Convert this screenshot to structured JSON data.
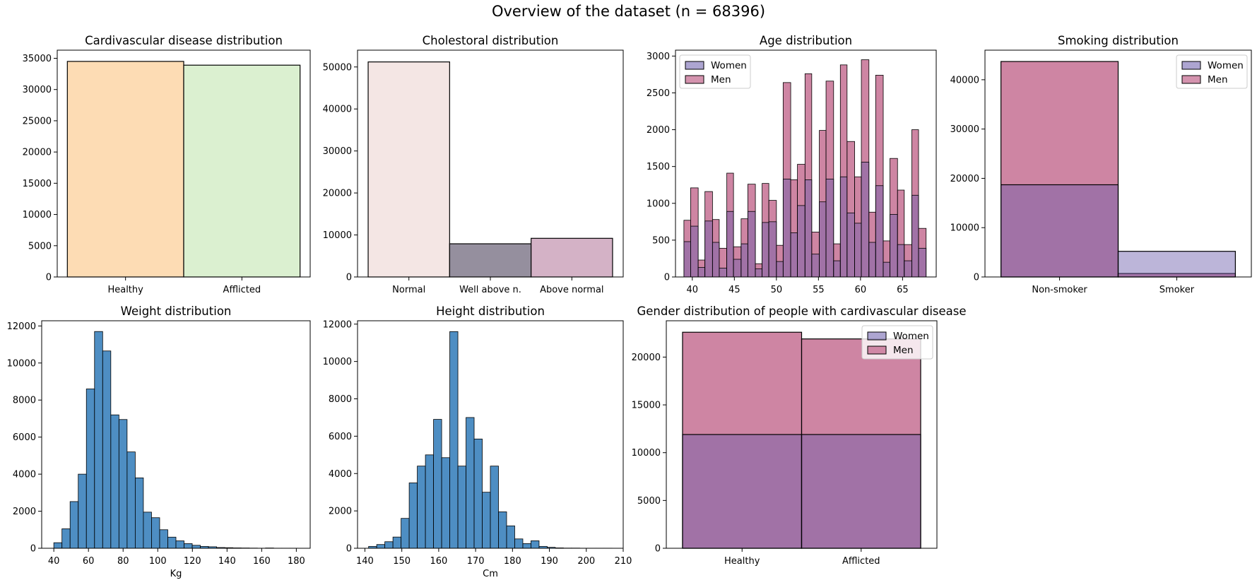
{
  "figure": {
    "title": "Overview of the dataset (n = 68396)"
  },
  "colors": {
    "healthy": "#fddcb4",
    "afflicted": "#dbf0d0",
    "chol_normal": "#f4e6e4",
    "chol_well": "#958f9e",
    "chol_above": "#d4b2c6",
    "women": "#6a5bab",
    "men": "#b03a6b",
    "histogram": "#2f7ab8"
  },
  "chart_data": [
    {
      "id": "cardio",
      "type": "bar",
      "title": "Cardivascular disease distribution",
      "categories": [
        "Healthy",
        "Afflicted"
      ],
      "values": [
        34500,
        33900
      ],
      "ylim": [
        0,
        36300
      ],
      "yticks": [
        0,
        5000,
        10000,
        15000,
        20000,
        25000,
        30000,
        35000
      ],
      "xlabel": "",
      "ylabel": ""
    },
    {
      "id": "chol",
      "type": "bar",
      "title": "Cholestoral distribution",
      "categories": [
        "Normal",
        "Well above n.",
        "Above normal"
      ],
      "values": [
        51200,
        7900,
        9200
      ],
      "ylim": [
        0,
        54000
      ],
      "yticks": [
        0,
        10000,
        20000,
        30000,
        40000,
        50000
      ],
      "xlabel": "",
      "ylabel": ""
    },
    {
      "id": "age",
      "type": "bar",
      "title": "Age distribution",
      "legend": [
        "Women",
        "Men"
      ],
      "legend_loc": "upper left",
      "bins": [
        {
          "x0": 39.0,
          "x1": 39.8,
          "women": 480,
          "total": 770
        },
        {
          "x0": 39.8,
          "x1": 40.7,
          "women": 690,
          "total": 1210
        },
        {
          "x0": 40.7,
          "x1": 41.5,
          "women": 130,
          "total": 230
        },
        {
          "x0": 41.5,
          "x1": 42.4,
          "women": 760,
          "total": 1160
        },
        {
          "x0": 42.4,
          "x1": 43.2,
          "women": 470,
          "total": 780
        },
        {
          "x0": 43.2,
          "x1": 44.1,
          "women": 120,
          "total": 390
        },
        {
          "x0": 44.1,
          "x1": 44.9,
          "women": 890,
          "total": 1410
        },
        {
          "x0": 44.9,
          "x1": 45.8,
          "women": 240,
          "total": 410
        },
        {
          "x0": 45.8,
          "x1": 46.6,
          "women": 450,
          "total": 790
        },
        {
          "x0": 46.6,
          "x1": 47.5,
          "women": 890,
          "total": 1260
        },
        {
          "x0": 47.5,
          "x1": 48.3,
          "women": 110,
          "total": 180
        },
        {
          "x0": 48.3,
          "x1": 49.1,
          "women": 740,
          "total": 1270
        },
        {
          "x0": 49.1,
          "x1": 50.0,
          "women": 750,
          "total": 1040
        },
        {
          "x0": 50.0,
          "x1": 50.8,
          "women": 210,
          "total": 430
        },
        {
          "x0": 50.8,
          "x1": 51.7,
          "women": 1330,
          "total": 2640
        },
        {
          "x0": 51.7,
          "x1": 52.5,
          "women": 600,
          "total": 1320
        },
        {
          "x0": 52.5,
          "x1": 53.4,
          "women": 970,
          "total": 1530
        },
        {
          "x0": 53.4,
          "x1": 54.2,
          "women": 1320,
          "total": 2760
        },
        {
          "x0": 54.2,
          "x1": 55.1,
          "women": 310,
          "total": 610
        },
        {
          "x0": 55.1,
          "x1": 55.9,
          "women": 1020,
          "total": 1990
        },
        {
          "x0": 55.9,
          "x1": 56.8,
          "women": 1330,
          "total": 2660
        },
        {
          "x0": 56.8,
          "x1": 57.6,
          "women": 220,
          "total": 450
        },
        {
          "x0": 57.6,
          "x1": 58.4,
          "women": 1360,
          "total": 2880
        },
        {
          "x0": 58.4,
          "x1": 59.3,
          "women": 870,
          "total": 1840
        },
        {
          "x0": 59.3,
          "x1": 60.1,
          "women": 730,
          "total": 1360
        },
        {
          "x0": 60.1,
          "x1": 61.0,
          "women": 1560,
          "total": 2950
        },
        {
          "x0": 61.0,
          "x1": 61.8,
          "women": 470,
          "total": 880
        },
        {
          "x0": 61.8,
          "x1": 62.7,
          "women": 1240,
          "total": 2740
        },
        {
          "x0": 62.7,
          "x1": 63.5,
          "women": 200,
          "total": 490
        },
        {
          "x0": 63.5,
          "x1": 64.4,
          "women": 850,
          "total": 1610
        },
        {
          "x0": 64.4,
          "x1": 65.2,
          "women": 440,
          "total": 1180
        },
        {
          "x0": 65.2,
          "x1": 66.1,
          "women": 220,
          "total": 440
        },
        {
          "x0": 66.1,
          "x1": 66.9,
          "women": 1110,
          "total": 2000
        },
        {
          "x0": 66.9,
          "x1": 67.8,
          "women": 390,
          "total": 660
        }
      ],
      "xlim": [
        38.0,
        69.0
      ],
      "xticks": [
        40,
        45,
        50,
        55,
        60,
        65
      ],
      "ylim": [
        0,
        3080
      ],
      "yticks": [
        0,
        500,
        1000,
        1500,
        2000,
        2500,
        3000
      ],
      "xlabel": "",
      "ylabel": ""
    },
    {
      "id": "smoke",
      "type": "bar",
      "title": "Smoking distribution",
      "categories": [
        "Non-smoker",
        "Smoker"
      ],
      "series": [
        {
          "name": "Women",
          "values": [
            18700,
            5200
          ]
        },
        {
          "name": "Men",
          "values": [
            43700,
            700
          ]
        }
      ],
      "legend_loc": "upper right",
      "ylim": [
        0,
        46000
      ],
      "yticks": [
        0,
        10000,
        20000,
        30000,
        40000
      ],
      "xlabel": "",
      "ylabel": ""
    },
    {
      "id": "weight",
      "type": "bar",
      "title": "Weight distribution",
      "xlabel": "Kg",
      "bin_edges": [
        40,
        44.7,
        49.4,
        54.1,
        58.8,
        63.5,
        68.2,
        72.9,
        77.6,
        82.3,
        87,
        91.7,
        96.4,
        101.1,
        105.8,
        110.5,
        115.2,
        119.9,
        124.6,
        129.3,
        134,
        138.7,
        143.4,
        148.1,
        152.8,
        157.5,
        162.2,
        166.9,
        171.6,
        176.3,
        181
      ],
      "counts": [
        300,
        1050,
        2520,
        4000,
        8600,
        11700,
        10650,
        7200,
        6950,
        5200,
        3800,
        1950,
        1650,
        1000,
        600,
        400,
        250,
        160,
        100,
        80,
        40,
        30,
        20,
        15,
        10,
        5,
        15,
        5,
        5,
        5
      ],
      "xlim": [
        33,
        188
      ],
      "xticks": [
        40,
        60,
        80,
        100,
        120,
        140,
        160,
        180
      ],
      "ylim": [
        0,
        12280
      ],
      "yticks": [
        0,
        2000,
        4000,
        6000,
        8000,
        10000,
        12000
      ]
    },
    {
      "id": "height",
      "type": "bar",
      "title": "Height distribution",
      "xlabel": "Cm",
      "bin_edges": [
        141,
        143.2,
        145.4,
        147.6,
        149.8,
        152,
        154.2,
        156.4,
        158.6,
        160.8,
        163,
        165.2,
        167.4,
        169.6,
        171.8,
        174,
        176.2,
        178.4,
        180.6,
        182.8,
        185,
        187.2,
        189.4,
        191.6,
        193.8,
        196,
        198.2,
        200.4,
        202.6,
        204.8,
        207
      ],
      "counts": [
        100,
        200,
        350,
        600,
        1600,
        3500,
        4400,
        5000,
        6900,
        4850,
        11600,
        4400,
        7000,
        5850,
        3000,
        4400,
        1950,
        1200,
        500,
        250,
        400,
        100,
        50,
        20,
        10,
        10,
        5,
        5,
        5,
        5
      ],
      "xlim": [
        138,
        210
      ],
      "xticks": [
        140,
        150,
        160,
        170,
        180,
        190,
        200,
        210
      ],
      "ylim": [
        0,
        12180
      ],
      "yticks": [
        0,
        2000,
        4000,
        6000,
        8000,
        10000,
        12000
      ]
    },
    {
      "id": "gender",
      "type": "bar",
      "title": "Gender distribution of people with cardivascular disease",
      "categories": [
        "Healthy",
        "Afflicted"
      ],
      "series": [
        {
          "name": "Women",
          "values": [
            11900,
            11900
          ]
        },
        {
          "name": "Men",
          "values": [
            22600,
            21900
          ]
        }
      ],
      "legend_loc": "upper right",
      "ylim": [
        0,
        23800
      ],
      "yticks": [
        0,
        5000,
        10000,
        15000,
        20000
      ],
      "xlabel": "",
      "ylabel": ""
    }
  ]
}
